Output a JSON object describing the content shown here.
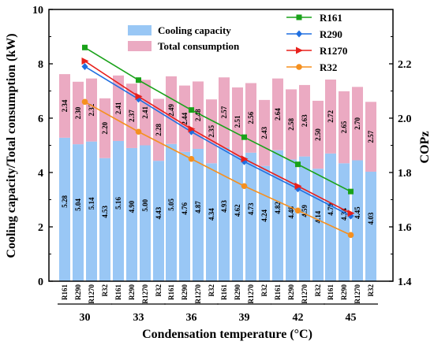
{
  "chart_data": {
    "type": "bar",
    "groups": [
      "30",
      "33",
      "36",
      "39",
      "42",
      "45"
    ],
    "refrigerants": [
      "R161",
      "R290",
      "R1270",
      "R32"
    ],
    "xlabel": "Condensation temperature (°C)",
    "ylabel_left": "Cooling capacity/Total consumption (kW)",
    "ylabel_right": "COPz",
    "ylim_left": [
      0,
      10
    ],
    "ylim_right": [
      1.4,
      2.4
    ],
    "yticks_left": [
      "0",
      "2",
      "4",
      "6",
      "8",
      "10"
    ],
    "yticks_right": [
      "1.4",
      "1.6",
      "1.8",
      "2.0",
      "2.2"
    ],
    "bar_series": [
      {
        "name": "Cooling capacity",
        "color": "#99c7f5",
        "values": [
          [
            5.28,
            5.04,
            5.14,
            4.53
          ],
          [
            5.16,
            4.9,
            5.0,
            4.43
          ],
          [
            5.05,
            4.76,
            4.87,
            4.34
          ],
          [
            4.93,
            4.62,
            4.73,
            4.24
          ],
          [
            4.82,
            4.48,
            4.59,
            4.14
          ],
          [
            4.7,
            4.34,
            4.45,
            4.03
          ]
        ]
      },
      {
        "name": "Total consumption",
        "color": "#ebaac2",
        "values": [
          [
            2.34,
            2.3,
            2.32,
            2.2
          ],
          [
            2.41,
            2.37,
            2.41,
            2.28
          ],
          [
            2.49,
            2.44,
            2.48,
            2.35
          ],
          [
            2.57,
            2.51,
            2.56,
            2.43
          ],
          [
            2.64,
            2.58,
            2.63,
            2.5
          ],
          [
            2.72,
            2.65,
            2.7,
            2.57
          ]
        ]
      }
    ],
    "line_series": [
      {
        "name": "R161",
        "color": "#1aa21a",
        "marker": "square",
        "values": [
          2.26,
          2.14,
          2.03,
          1.93,
          1.83,
          1.73
        ]
      },
      {
        "name": "R290",
        "color": "#1f6fe0",
        "marker": "diamond",
        "values": [
          2.19,
          2.07,
          1.95,
          1.84,
          1.74,
          1.64
        ]
      },
      {
        "name": "R1270",
        "color": "#e8201c",
        "marker": "triangle",
        "values": [
          2.21,
          2.08,
          1.96,
          1.85,
          1.75,
          1.65
        ]
      },
      {
        "name": "R32",
        "color": "#f5901f",
        "marker": "circle",
        "values": [
          2.06,
          1.95,
          1.85,
          1.75,
          1.66,
          1.57
        ]
      }
    ],
    "legend_bars_position": "top-center",
    "legend_lines_position": "top-right"
  }
}
